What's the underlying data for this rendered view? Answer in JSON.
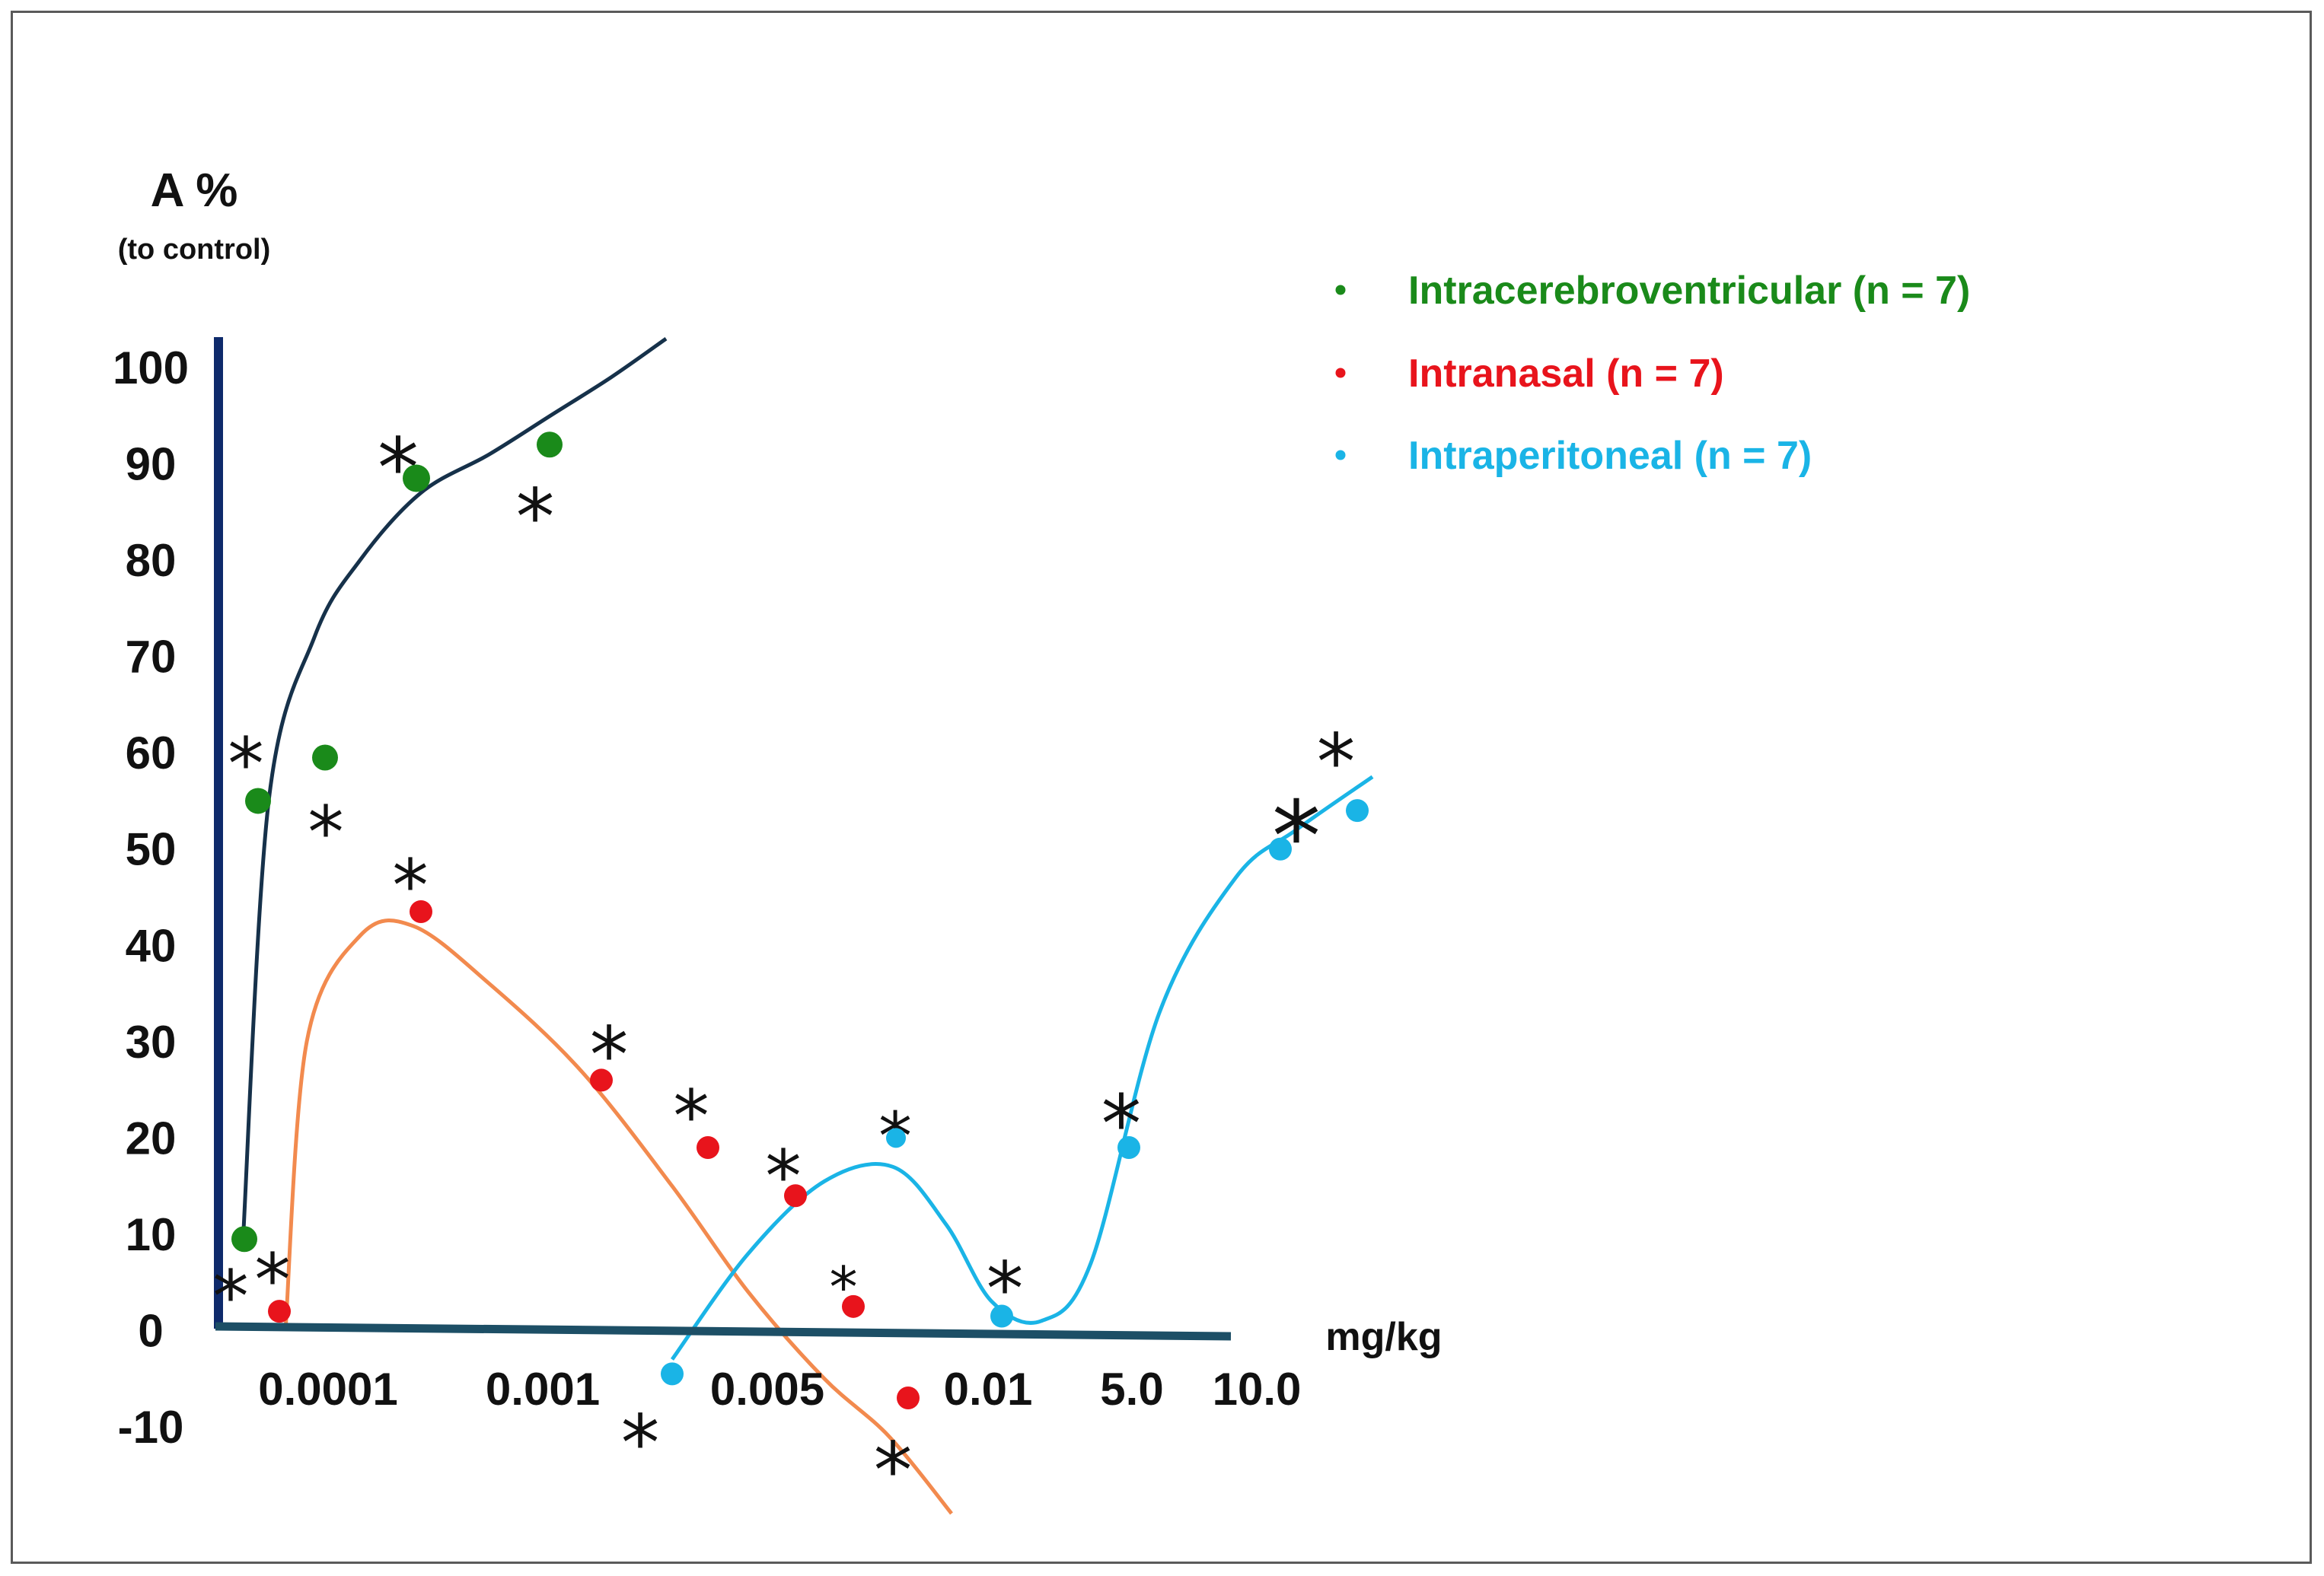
{
  "chart_data": {
    "type": "scatter",
    "ylabel": "A %",
    "ylabel_sub": "(to control)",
    "xlabel": "mg/kg",
    "ylim": [
      -10,
      100
    ],
    "y_ticks": [
      "100",
      "90",
      "80",
      "70",
      "60",
      "50",
      "40",
      "30",
      "20",
      "10",
      "0",
      "-10"
    ],
    "x_categories": [
      "0.0001",
      "0.001",
      "0.005",
      "0.01",
      "5.0",
      "10.0"
    ],
    "legend_position": "top-right",
    "series": [
      {
        "name": "Intracerebroventricular (n = 7)",
        "color": "#1a8a1a",
        "line_color": "#16314a",
        "points": [
          {
            "x": "<0.0001",
            "y": 9.5
          },
          {
            "x": "<0.0001",
            "y": 55
          },
          {
            "x": "0.0001",
            "y": 59.5
          },
          {
            "x": "0.0001-0.001",
            "y": 88.5
          },
          {
            "x": "0.001",
            "y": 92
          }
        ]
      },
      {
        "name": "Intranasal (n = 7)",
        "color": "#e8141c",
        "line_color": "#f28a4e",
        "points": [
          {
            "x": "<0.0001",
            "y": 2
          },
          {
            "x": "0.0001-0.001",
            "y": 43.5
          },
          {
            "x": "0.001",
            "y": 26
          },
          {
            "x": "0.001-0.005",
            "y": 19
          },
          {
            "x": "0.005",
            "y": 14
          },
          {
            "x": "0.005-0.01",
            "y": 2.5
          },
          {
            "x": "0.005-0.01",
            "y": -7
          }
        ]
      },
      {
        "name": "Intraperitoneal (n = 7)",
        "color": "#1ab4e6",
        "line_color": "#1ab4e6",
        "points": [
          {
            "x": "0.001-0.005",
            "y": -4.5
          },
          {
            "x": "0.005-0.01",
            "y": 20
          },
          {
            "x": "0.01",
            "y": 1.5
          },
          {
            "x": "5.0",
            "y": 19
          },
          {
            "x": "10.0",
            "y": 50
          },
          {
            "x": ">10.0",
            "y": 54
          }
        ]
      }
    ],
    "significance_marker": "*"
  }
}
